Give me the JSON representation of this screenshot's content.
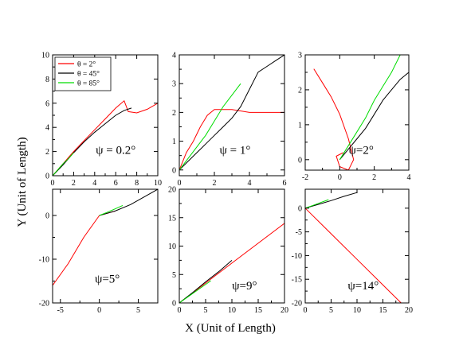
{
  "figure": {
    "xlabel": "X (Unit of Length)",
    "ylabel": "Y (Unit of Length)"
  },
  "legend": [
    {
      "label": "θ = 2°",
      "color": "#ff0000"
    },
    {
      "label": "θ = 45°",
      "color": "#000000"
    },
    {
      "label": "θ = 85°",
      "color": "#00dd00"
    }
  ],
  "colors": {
    "red": "#ff0000",
    "black": "#000000",
    "green": "#00dd00"
  },
  "chart_data": [
    {
      "type": "line",
      "label": "ψ = 0.2°",
      "xlim": [
        0,
        10
      ],
      "ylim": [
        0,
        10
      ],
      "xticks": [
        0,
        2,
        4,
        6,
        8,
        10
      ],
      "yticks": [
        0,
        2,
        4,
        6,
        8,
        10
      ],
      "xticklabels": [
        "0",
        "2",
        "4",
        "6",
        "8",
        "10"
      ],
      "yticklabels": [
        "0",
        "2",
        "4",
        "6",
        "8",
        "10"
      ],
      "series": [
        {
          "name": "θ = 2°",
          "color": "#ff0000",
          "x": [
            0,
            0.6,
            1.2,
            2,
            3,
            4,
            5,
            6,
            6.8,
            7.2,
            8,
            9,
            10
          ],
          "y": [
            0,
            0.6,
            1.2,
            2,
            2.9,
            3.8,
            4.7,
            5.6,
            6.2,
            5.3,
            5.2,
            5.5,
            6
          ]
        },
        {
          "name": "θ = 45°",
          "color": "#000000",
          "x": [
            0,
            1,
            2,
            3,
            4,
            5,
            6,
            6.8,
            7.5
          ],
          "y": [
            0,
            0.9,
            1.9,
            2.8,
            3.6,
            4.3,
            5,
            5.4,
            5.6
          ]
        },
        {
          "name": "θ = 85°",
          "color": "#00dd00",
          "x": [
            0,
            0.5,
            1,
            1.5,
            2
          ],
          "y": [
            0,
            0.5,
            1,
            1.4,
            1.9
          ]
        }
      ]
    },
    {
      "type": "line",
      "label": "ψ = 1°",
      "xlim": [
        0,
        6
      ],
      "ylim": [
        -0.2,
        4
      ],
      "xticks": [
        0,
        2,
        4,
        6
      ],
      "yticks": [
        0,
        1,
        2,
        3,
        4
      ],
      "xticklabels": [
        "0",
        "2",
        "4",
        "6"
      ],
      "yticklabels": [
        "0",
        "1",
        "2",
        "3",
        "4"
      ],
      "series": [
        {
          "name": "θ = 2°",
          "color": "#ff0000",
          "x": [
            0,
            0.2,
            0.4,
            0.8,
            1.2,
            1.6,
            2,
            3,
            4,
            5,
            6
          ],
          "y": [
            0,
            0.3,
            0.6,
            1,
            1.5,
            1.9,
            2.1,
            2.1,
            2,
            2,
            2
          ]
        },
        {
          "name": "θ = 45°",
          "color": "#000000",
          "x": [
            0,
            0.5,
            1,
            1.5,
            2,
            2.5,
            3,
            3.5,
            4,
            4.5,
            5,
            5.5,
            6
          ],
          "y": [
            0,
            0.3,
            0.6,
            0.9,
            1.2,
            1.5,
            1.8,
            2.2,
            2.8,
            3.4,
            3.6,
            3.8,
            4
          ]
        },
        {
          "name": "θ = 85°",
          "color": "#00dd00",
          "x": [
            0,
            0.5,
            1,
            1.5,
            2,
            2.5,
            3,
            3.5
          ],
          "y": [
            0,
            0.4,
            0.8,
            1.2,
            1.7,
            2.2,
            2.6,
            3
          ]
        }
      ]
    },
    {
      "type": "line",
      "label": "ψ=2°",
      "xlim": [
        -2,
        4
      ],
      "ylim": [
        -0.3,
        3
      ],
      "xticks": [
        -2,
        0,
        2,
        4
      ],
      "yticks": [
        0,
        1,
        2,
        3
      ],
      "xticklabels": [
        "-2",
        "0",
        "2",
        "4"
      ],
      "yticklabels": [
        "0",
        "1",
        "2",
        "3"
      ],
      "series": [
        {
          "name": "θ = 2°",
          "color": "#ff0000",
          "x": [
            -1.5,
            -1,
            -0.5,
            0,
            0.5,
            0.8,
            0.5,
            0,
            -0.2,
            0.2
          ],
          "y": [
            2.6,
            2.2,
            1.8,
            1.3,
            0.6,
            0,
            -0.3,
            -0.2,
            0.1,
            0.2
          ]
        },
        {
          "name": "θ = 45°",
          "color": "#000000",
          "x": [
            0,
            0.5,
            1,
            1.5,
            2,
            2.5,
            3,
            3.5,
            4
          ],
          "y": [
            0,
            0.3,
            0.6,
            0.9,
            1.3,
            1.7,
            2,
            2.3,
            2.5
          ]
        },
        {
          "name": "θ = 85°",
          "color": "#00dd00",
          "x": [
            0,
            0.5,
            1,
            1.5,
            2,
            2.5,
            3,
            3.5
          ],
          "y": [
            0,
            0.4,
            0.8,
            1.2,
            1.7,
            2.1,
            2.5,
            3
          ]
        }
      ]
    },
    {
      "type": "line",
      "label": "ψ=5°",
      "xlim": [
        -6,
        7.5
      ],
      "ylim": [
        -20,
        6
      ],
      "xticks": [
        -5,
        0,
        5
      ],
      "yticks": [
        -20,
        -10,
        0
      ],
      "xticklabels": [
        "-5",
        "0",
        "5"
      ],
      "yticklabels": [
        "-20",
        "-10",
        "0"
      ],
      "series": [
        {
          "name": "θ = 2°",
          "color": "#ff0000",
          "x": [
            -6,
            -4,
            -2,
            0,
            1,
            2
          ],
          "y": [
            -16,
            -11,
            -5,
            0,
            0.5,
            1
          ]
        },
        {
          "name": "θ = 45°",
          "color": "#000000",
          "x": [
            0,
            2,
            4,
            6,
            7.5
          ],
          "y": [
            0,
            1,
            2.5,
            4.5,
            6
          ]
        },
        {
          "name": "θ = 85°",
          "color": "#00dd00",
          "x": [
            0,
            1,
            2,
            3
          ],
          "y": [
            0,
            0.7,
            1.5,
            2.3
          ]
        }
      ]
    },
    {
      "type": "line",
      "label": "ψ=9°",
      "xlim": [
        0,
        20
      ],
      "ylim": [
        0,
        20
      ],
      "xticks": [
        0,
        5,
        10,
        15,
        20
      ],
      "yticks": [
        0,
        5,
        10,
        15,
        20
      ],
      "xticklabels": [
        "0",
        "5",
        "10",
        "15",
        "20"
      ],
      "yticklabels": [
        "0",
        "5",
        "10",
        "15",
        "20"
      ],
      "series": [
        {
          "name": "θ = 2°",
          "color": "#ff0000",
          "x": [
            0,
            5,
            10,
            15,
            20
          ],
          "y": [
            0,
            3.5,
            7,
            10.5,
            14
          ]
        },
        {
          "name": "θ = 45°",
          "color": "#000000",
          "x": [
            0,
            2.5,
            5,
            7.5,
            10
          ],
          "y": [
            0,
            1.8,
            3.7,
            5.5,
            7.5
          ]
        },
        {
          "name": "θ = 85°",
          "color": "#00dd00",
          "x": [
            0,
            2,
            4,
            6
          ],
          "y": [
            0,
            1.3,
            2.6,
            3.9
          ]
        }
      ]
    },
    {
      "type": "line",
      "label": "ψ=14°",
      "xlim": [
        0,
        20
      ],
      "ylim": [
        -20,
        4
      ],
      "xticks": [
        0,
        5,
        10,
        15,
        20
      ],
      "yticks": [
        -20,
        -15,
        -10,
        -5,
        0
      ],
      "xticklabels": [
        "0",
        "5",
        "10",
        "15",
        "20"
      ],
      "yticklabels": [
        "-20",
        "-15",
        "-10",
        "-5",
        "0"
      ],
      "series": [
        {
          "name": "θ = 2°",
          "color": "#ff0000",
          "x": [
            0,
            5,
            10,
            15,
            18.5
          ],
          "y": [
            0,
            -5.4,
            -10.8,
            -16.2,
            -20
          ]
        },
        {
          "name": "θ = 45°",
          "color": "#000000",
          "x": [
            0,
            2.5,
            5,
            7.5,
            10
          ],
          "y": [
            0,
            0.8,
            1.6,
            2.5,
            3.3
          ]
        },
        {
          "name": "θ = 85°",
          "color": "#00dd00",
          "x": [
            0,
            1.5,
            3,
            4.5
          ],
          "y": [
            0,
            0.6,
            1.2,
            1.8
          ]
        }
      ]
    }
  ]
}
